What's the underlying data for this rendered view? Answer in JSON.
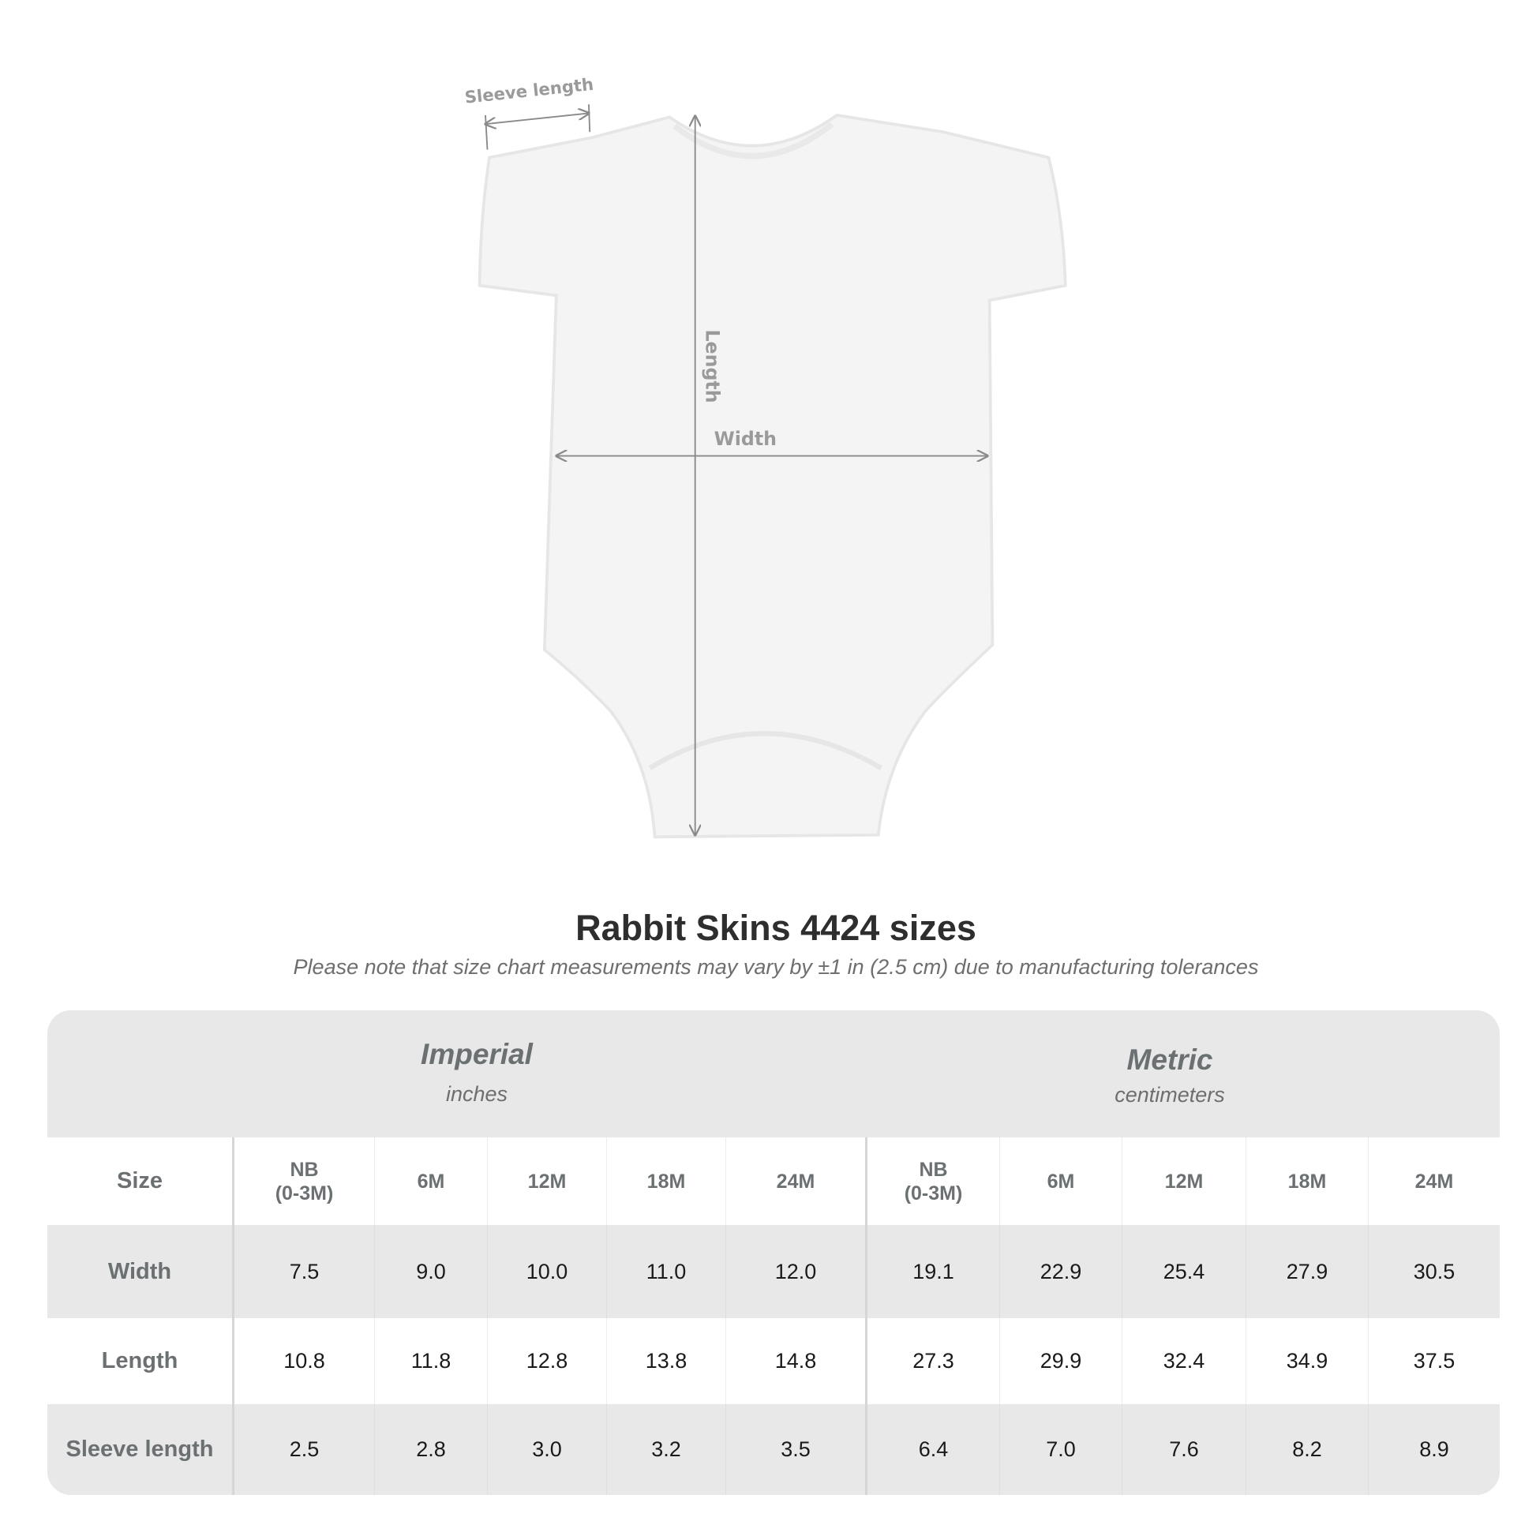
{
  "diagram": {
    "labels": {
      "sleeve": "Sleeve length",
      "length": "Length",
      "width": "Width"
    }
  },
  "title": "Rabbit Skins 4424 sizes",
  "subtitle": "Please note that size chart measurements may vary by ±1 in (2.5 cm) due to manufacturing tolerances",
  "table": {
    "imperial": {
      "name": "Imperial",
      "unit": "inches"
    },
    "metric": {
      "name": "Metric",
      "unit": "centimeters"
    },
    "size_label": "Size",
    "sizes": [
      "NB\n(0-3M)",
      "6M",
      "12M",
      "18M",
      "24M"
    ],
    "rows": [
      {
        "label": "Width",
        "imperial": [
          "7.5",
          "9.0",
          "10.0",
          "11.0",
          "12.0"
        ],
        "metric": [
          "19.1",
          "22.9",
          "25.4",
          "27.9",
          "30.5"
        ]
      },
      {
        "label": "Length",
        "imperial": [
          "10.8",
          "11.8",
          "12.8",
          "13.8",
          "14.8"
        ],
        "metric": [
          "27.3",
          "29.9",
          "32.4",
          "34.9",
          "37.5"
        ]
      },
      {
        "label": "Sleeve length",
        "imperial": [
          "2.5",
          "2.8",
          "3.0",
          "3.2",
          "3.5"
        ],
        "metric": [
          "6.4",
          "7.0",
          "7.6",
          "8.2",
          "8.9"
        ]
      }
    ]
  }
}
